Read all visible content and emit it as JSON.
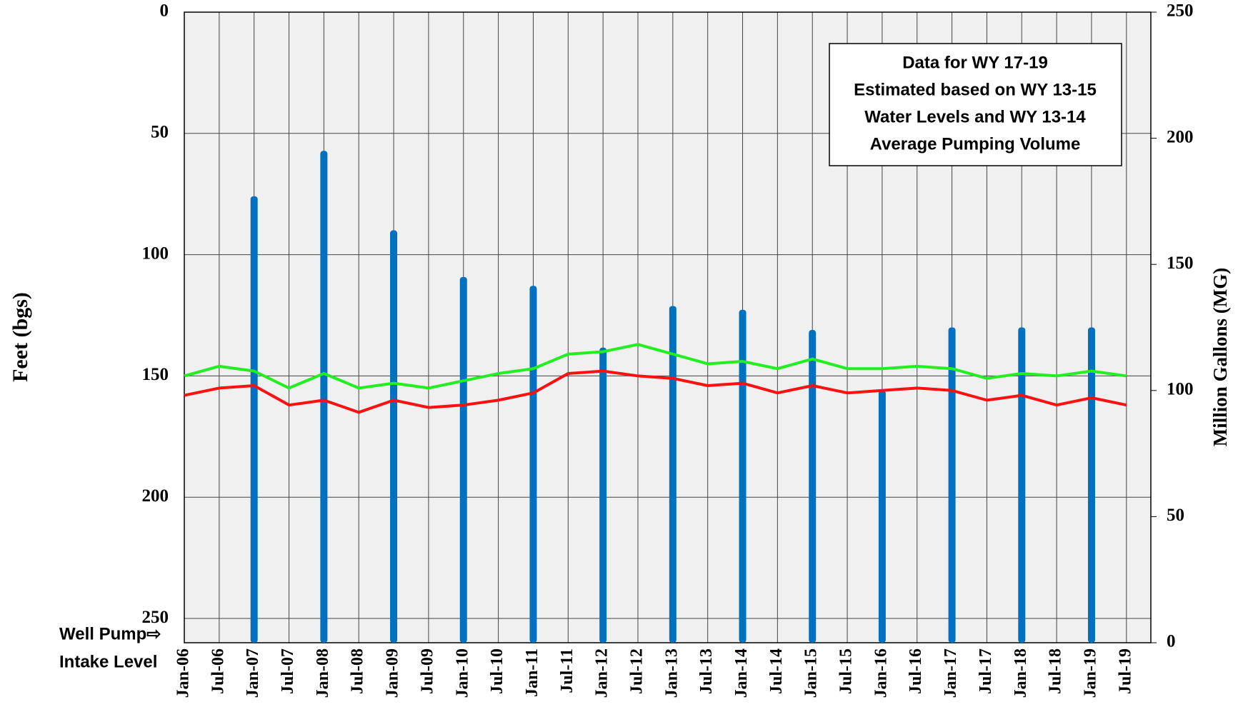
{
  "chart_data": {
    "type": "bar-line",
    "y_label": "Feet (bgs)",
    "y2_label": "Million Gallons (MG)",
    "categories": [
      "Jan-06",
      "Jul-06",
      "Jan-07",
      "Jul-07",
      "Jan-08",
      "Jul-08",
      "Jan-09",
      "Jul-09",
      "Jan-10",
      "Jul-10",
      "Jan-11",
      "Jul-11",
      "Jan-12",
      "Jul-12",
      "Jan-13",
      "Jul-13",
      "Jan-14",
      "Jul-14",
      "Jan-15",
      "Jul-15",
      "Jan-16",
      "Jul-16",
      "Jan-17",
      "Jul-17",
      "Jan-18",
      "Jul-18",
      "Jan-19",
      "Jul-19"
    ],
    "ylim": [
      0,
      260
    ],
    "yticks": [
      0,
      50,
      100,
      150,
      200,
      250
    ],
    "y_inverted": true,
    "y2lim": [
      0,
      250
    ],
    "y2ticks": [
      0,
      50,
      100,
      150,
      200,
      250
    ],
    "grid": true,
    "series": [
      {
        "type": "bar",
        "axis": "y2",
        "color": "#0070c0",
        "values": [
          null,
          null,
          177,
          null,
          195,
          null,
          163.5,
          null,
          145,
          null,
          141.5,
          null,
          117,
          null,
          133.5,
          null,
          132,
          null,
          124,
          null,
          100,
          null,
          125,
          null,
          125,
          null,
          125,
          null
        ]
      },
      {
        "type": "line",
        "axis": "y",
        "color": "#22ee22",
        "values": [
          150,
          146,
          148,
          155,
          149,
          155,
          153,
          155,
          152,
          149,
          147,
          141,
          140,
          137,
          141,
          145,
          144,
          147,
          143,
          147,
          147,
          146,
          147,
          151,
          149,
          150,
          148,
          150
        ]
      },
      {
        "type": "line",
        "axis": "y",
        "color": "#ff1010",
        "values": [
          158,
          155,
          154,
          162,
          160,
          165,
          160,
          163,
          162,
          160,
          157,
          149,
          148,
          150,
          151,
          154,
          153,
          157,
          154,
          157,
          156,
          155,
          156,
          160,
          158,
          162,
          159,
          162
        ]
      }
    ],
    "annotation_box": [
      "Data for WY 17-19",
      "Estimated based on WY 13-15",
      "Water Levels and  WY 13-14",
      "Average Pumping Volume"
    ],
    "annotation_left": [
      "Well Pump⇨",
      "Intake Level"
    ]
  }
}
